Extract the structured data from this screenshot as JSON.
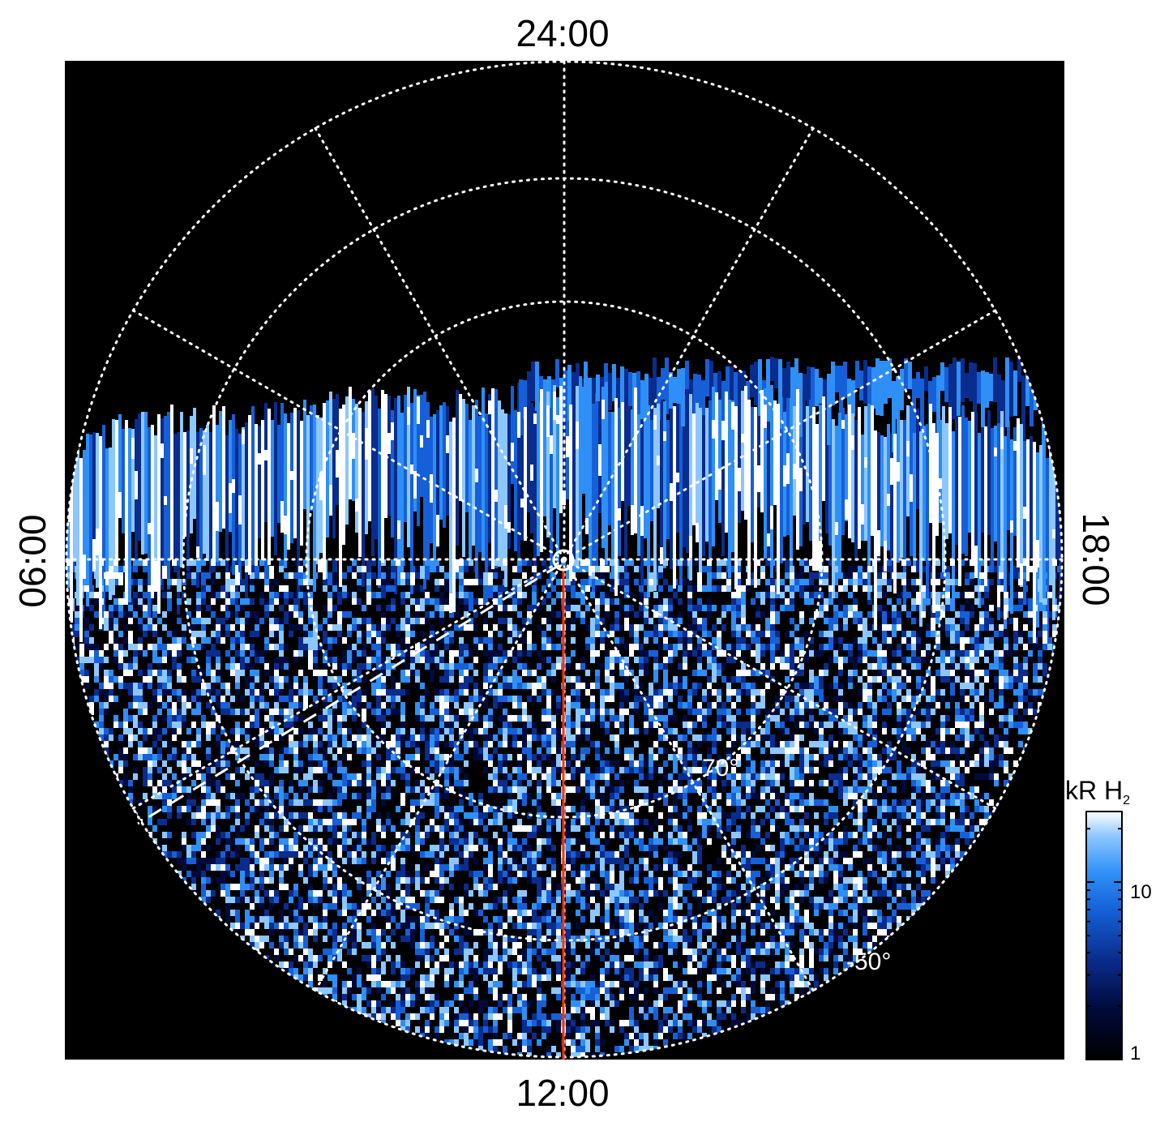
{
  "local_time_labels": {
    "top": "24:00",
    "bottom": "12:00",
    "left": "06:00",
    "right": "18:00"
  },
  "latitude_labels": {
    "inner": "-70°",
    "outer": "-50°"
  },
  "colorbar": {
    "unit": "kR H",
    "unit_subscript": "2",
    "tick_labels": [
      "10",
      "1"
    ],
    "scale": "log",
    "range": [
      1,
      25
    ],
    "colors": [
      "#000000",
      "#000a3a",
      "#0a2c8c",
      "#1560d8",
      "#2e8ff6",
      "#8cc7ff",
      "#ffffff"
    ]
  },
  "colors": {
    "background": "#000000",
    "grid": "#ffffff",
    "meridian_line": "#ff3300"
  }
}
